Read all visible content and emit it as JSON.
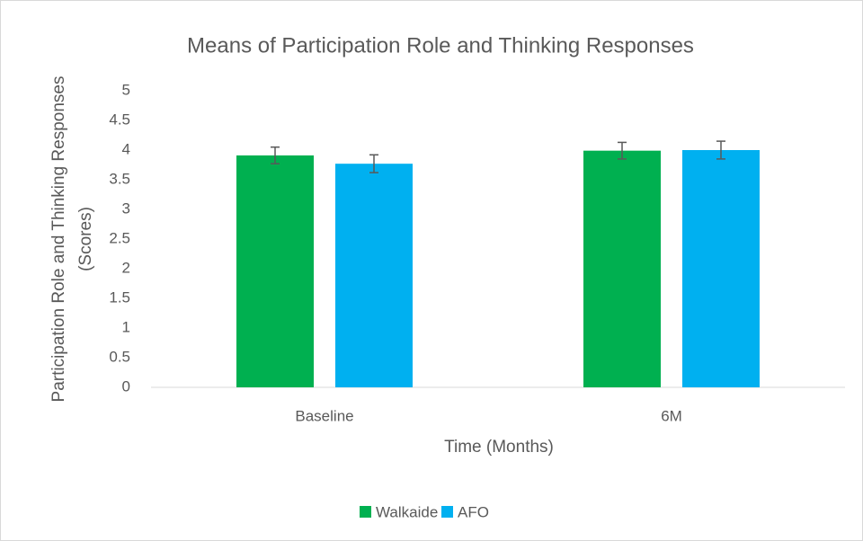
{
  "chart_data": {
    "type": "bar",
    "title": "Means of Participation Role and Thinking Responses",
    "xlabel": "Time (Months)",
    "ylabel": [
      "Participation Role and Thinking Responses",
      "(Scores)"
    ],
    "categories": [
      "Baseline",
      "6M"
    ],
    "series": [
      {
        "name": "Walkaide",
        "color": "#00b050",
        "values": [
          3.91,
          3.99
        ],
        "errors": [
          0.14,
          0.14
        ]
      },
      {
        "name": "AFO",
        "color": "#00b0f0",
        "values": [
          3.77,
          4.0
        ],
        "errors": [
          0.15,
          0.15
        ]
      }
    ],
    "ylim": [
      0,
      5
    ],
    "yticks": [
      0,
      0.5,
      1,
      1.5,
      2,
      2.5,
      3,
      3.5,
      4,
      4.5,
      5
    ],
    "grid": false,
    "legend": "bottom"
  }
}
